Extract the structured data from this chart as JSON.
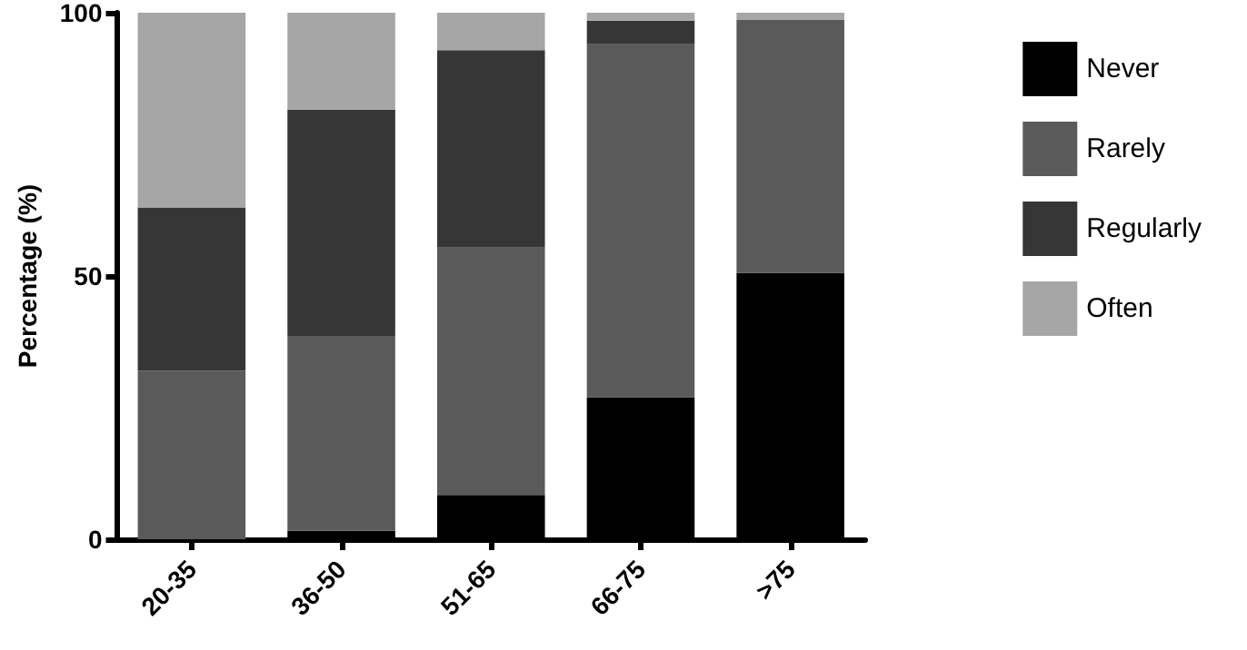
{
  "chart_data": {
    "type": "bar",
    "stacked": true,
    "ylabel": "Percentage (%)",
    "categories": [
      "20-35",
      "36-50",
      "51-65",
      "66-75",
      ">75"
    ],
    "series": [
      {
        "name": "Never",
        "color": "#000000",
        "values": [
          0,
          1.6,
          8.4,
          27,
          50.6
        ]
      },
      {
        "name": "Rarely",
        "color": "#5a5a5a",
        "values": [
          32,
          37,
          47,
          67,
          48
        ]
      },
      {
        "name": "Regularly",
        "color": "#363636",
        "values": [
          31,
          43,
          37.5,
          4.5,
          0
        ]
      },
      {
        "name": "Often",
        "color": "#a6a6a6",
        "values": [
          37,
          18.4,
          7.1,
          1.5,
          1.4
        ]
      }
    ],
    "ylim": [
      0,
      100
    ],
    "yticks": [
      0,
      50,
      100
    ],
    "grid": false,
    "legend": "right"
  }
}
